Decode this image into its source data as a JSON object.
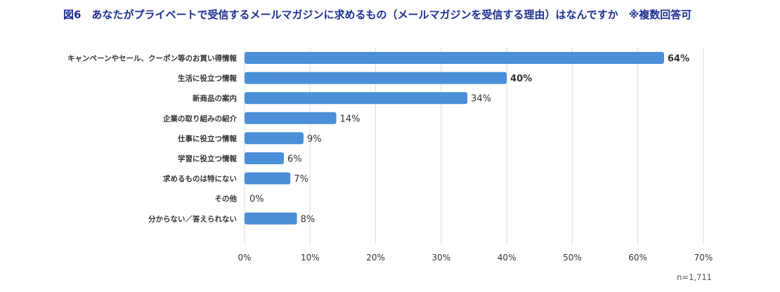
{
  "title": "図6　あなたがプライベートで受信するメールマガジンに求めるもの（メールマガジンを受信する理由）はなんですか　※複数回答可",
  "note": "n=1,711",
  "colors": {
    "bar": "#4a8fd8",
    "grid": "#dcdcdc",
    "title": "#1d2f8f"
  },
  "chart_data": {
    "type": "bar",
    "orientation": "horizontal",
    "title": "図6　あなたがプライベートで受信するメールマガジンに求めるもの（メールマガジンを受信する理由）はなんですか　※複数回答可",
    "categories": [
      "キャンペーンやセール、クーポン等のお買い得情報",
      "生活に役立つ情報",
      "新商品の案内",
      "企業の取り組みの紹介",
      "仕事に役立つ情報",
      "学習に役立つ情報",
      "求めるものは特にない",
      "その他",
      "分からない／答えられない"
    ],
    "values": [
      64,
      40,
      34,
      14,
      9,
      6,
      7,
      0,
      8
    ],
    "value_labels": [
      "64%",
      "40%",
      "34%",
      "14%",
      "9%",
      "6%",
      "7%",
      "0%",
      "8%"
    ],
    "bold_labels": [
      true,
      true,
      false,
      false,
      false,
      false,
      false,
      false,
      false
    ],
    "xlim": [
      0,
      70
    ],
    "xticks": [
      "0%",
      "10%",
      "20%",
      "30%",
      "40%",
      "50%",
      "60%",
      "70%"
    ],
    "grid": true,
    "unit": "%"
  }
}
